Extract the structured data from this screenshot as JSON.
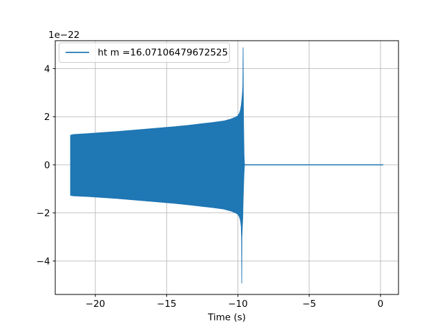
{
  "chart_data": {
    "type": "line",
    "title": "",
    "xlabel": "Time (s)",
    "ylabel": "",
    "offset_text": "1e−22",
    "grid": true,
    "legend": {
      "location": "upper left",
      "entries": [
        {
          "label": "ht m =16.07106479672525",
          "color": "#1f77b4"
        }
      ]
    },
    "xlim": [
      -22.81,
      1.26
    ],
    "ylim": [
      -5.39,
      5.16
    ],
    "xticks": [
      -20,
      -15,
      -10,
      -5,
      0
    ],
    "xtick_labels": [
      "−20",
      "−15",
      "−10",
      "−5",
      "0"
    ],
    "yticks": [
      -4,
      -2,
      0,
      2,
      4
    ],
    "ytick_labels": [
      "−4",
      "−2",
      "0",
      "2",
      "4"
    ],
    "y_unit_scale": "1e-22",
    "colors": {
      "line": "#1f77b4",
      "grid": "#b0b0b0",
      "spine": "#000000",
      "background": "#ffffff",
      "legend_border": "#cccccc"
    },
    "series": [
      {
        "name": "ht m =16.07106479672525",
        "color": "#1f77b4",
        "description": "Compact-binary inspiral chirp waveform h(t): unresolved dense oscillation rendered as filled envelope, merger spikes near t=-9.7 s, then zero signal until t=+0.2 s",
        "upper_envelope": {
          "t": [
            -21.74,
            -21.55,
            -20.5,
            -19.5,
            -18.5,
            -17.5,
            -16.5,
            -15.5,
            -14.5,
            -13.5,
            -12.5,
            -11.75,
            -11.0,
            -10.5,
            -10.2,
            -10.0,
            -9.9,
            -9.82,
            -9.76,
            -9.72,
            -9.68,
            -9.655,
            -9.637,
            -9.62,
            -9.6,
            -9.57,
            -9.54
          ],
          "y": [
            1.23,
            1.26,
            1.3,
            1.34,
            1.38,
            1.43,
            1.48,
            1.53,
            1.58,
            1.64,
            1.71,
            1.76,
            1.82,
            1.9,
            1.97,
            2.04,
            2.14,
            2.28,
            2.5,
            2.72,
            3.0,
            3.3,
            4.88,
            2.8,
            1.6,
            0.4,
            0.03
          ]
        },
        "lower_envelope": {
          "t": [
            -21.74,
            -21.55,
            -20.5,
            -19.5,
            -18.5,
            -17.5,
            -16.5,
            -15.5,
            -14.5,
            -13.5,
            -12.5,
            -11.75,
            -11.0,
            -10.5,
            -10.2,
            -10.0,
            -9.9,
            -9.82,
            -9.77,
            -9.745,
            -9.734,
            -9.72,
            -9.7,
            -9.66,
            -9.63,
            -9.6,
            -9.57,
            -9.54
          ],
          "y": [
            -1.27,
            -1.29,
            -1.32,
            -1.36,
            -1.4,
            -1.45,
            -1.5,
            -1.55,
            -1.6,
            -1.66,
            -1.73,
            -1.78,
            -1.84,
            -1.92,
            -1.99,
            -2.06,
            -2.16,
            -2.32,
            -2.55,
            -3.1,
            -4.93,
            -3.0,
            -2.7,
            -2.2,
            -1.4,
            -0.8,
            -0.3,
            -0.03
          ]
        },
        "flat_tail": {
          "t_start": -9.54,
          "t_end": 0.19,
          "y": 0
        },
        "peak": {
          "t": -9.637,
          "y": 4.88
        },
        "trough": {
          "t": -9.734,
          "y": -4.93
        },
        "signal_start_t": -21.74,
        "start_amplitude": 1.25
      }
    ]
  }
}
